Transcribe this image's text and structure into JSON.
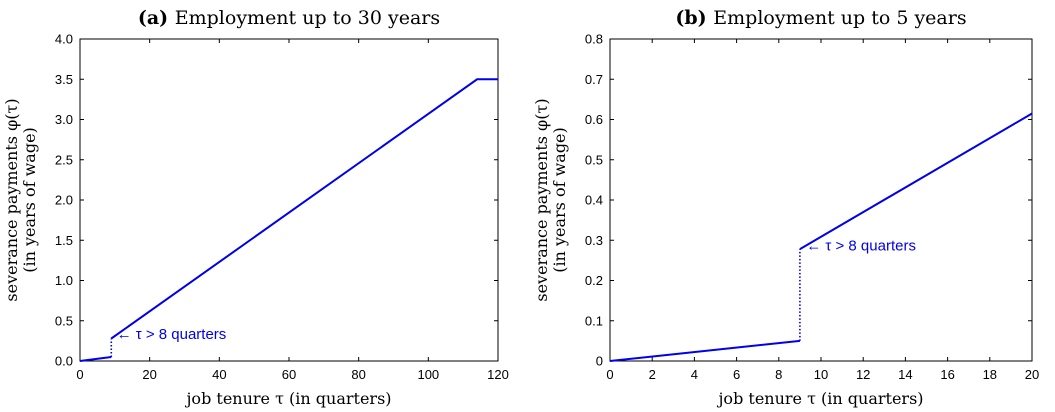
{
  "chart_data": [
    {
      "type": "line",
      "title_tag": "(a)",
      "title": "Employment up to 30 years",
      "xlabel": "job tenure τ (in quarters)",
      "ylabel": "severance payments φ(τ)",
      "ylabel2": "(in years of wage)",
      "xlim": [
        0,
        120
      ],
      "ylim": [
        0,
        4
      ],
      "x_ticks": [
        0,
        20,
        40,
        60,
        80,
        100,
        120
      ],
      "y_ticks": [
        "0.0",
        "0.5",
        "1.0",
        "1.5",
        "2.0",
        "2.5",
        "3.0",
        "3.5",
        "4.0"
      ],
      "color": "#0000ee",
      "segments": [
        {
          "style": "solid",
          "points": [
            [
              0,
              0
            ],
            [
              9,
              0.05
            ]
          ]
        },
        {
          "style": "dotted",
          "points": [
            [
              9,
              0.05
            ],
            [
              9,
              0.28
            ]
          ]
        },
        {
          "style": "solid",
          "points": [
            [
              9,
              0.28
            ],
            [
              114,
              3.5
            ],
            [
              120,
              3.5
            ]
          ]
        }
      ],
      "annotation": {
        "text": "← τ > 8 quarters",
        "x": 10.5,
        "y": 0.25
      }
    },
    {
      "type": "line",
      "title_tag": "(b)",
      "title": "Employment up to 5 years",
      "xlabel": "job tenure τ (in quarters)",
      "ylabel": "severance payments φ(τ)",
      "ylabel2": "(in years of wage)",
      "xlim": [
        0,
        20
      ],
      "ylim": [
        0,
        0.8
      ],
      "x_ticks": [
        0,
        2,
        4,
        6,
        8,
        10,
        12,
        14,
        16,
        18,
        20
      ],
      "y_ticks": [
        "0",
        "0.1",
        "0.2",
        "0.3",
        "0.4",
        "0.5",
        "0.6",
        "0.7",
        "0.8"
      ],
      "color": "#0000ee",
      "segments": [
        {
          "style": "solid",
          "points": [
            [
              0,
              0
            ],
            [
              9,
              0.05
            ]
          ]
        },
        {
          "style": "dotted",
          "points": [
            [
              9,
              0.05
            ],
            [
              9,
              0.278
            ]
          ]
        },
        {
          "style": "solid",
          "points": [
            [
              9,
              0.278
            ],
            [
              20,
              0.615
            ]
          ]
        }
      ],
      "annotation": {
        "text": "← τ > 8 quarters",
        "x": 9.3,
        "y": 0.27
      }
    }
  ]
}
